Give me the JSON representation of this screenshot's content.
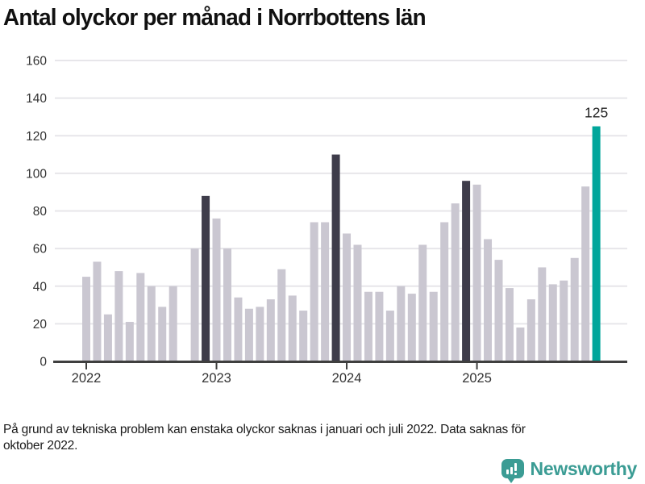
{
  "title": "Antal olyckor per månad i Norrbottens län",
  "footnote": {
    "line1": "På grund av tekniska problem kan enstaka olyckor saknas i januari och juli 2022. Data saknas för",
    "line2": "oktober 2022."
  },
  "branding": {
    "logo_text": "Newsworthy",
    "logo_color": "#3B9C94"
  },
  "colors": {
    "bar_default": "#CAC7D1",
    "bar_highlight_dark": "#3E3C4A",
    "bar_highlight_current": "#00A69B",
    "gridline": "#E7E6EA",
    "axis": "#3F3F3F",
    "tick_label": "#333333",
    "annotation_text": "#222222",
    "title_text": "#111111"
  },
  "chart_data": {
    "type": "bar",
    "title": "Antal olyckor per månad i Norrbottens län",
    "ylabel": "",
    "xlabel": "",
    "ylim": [
      0,
      160
    ],
    "yticks": [
      0,
      20,
      40,
      60,
      80,
      100,
      120,
      140,
      160
    ],
    "grid": true,
    "legend": false,
    "x": [
      "2022-01",
      "2022-02",
      "2022-03",
      "2022-04",
      "2022-05",
      "2022-06",
      "2022-07",
      "2022-08",
      "2022-09",
      "2022-10",
      "2022-11",
      "2022-12",
      "2023-01",
      "2023-02",
      "2023-03",
      "2023-04",
      "2023-05",
      "2023-06",
      "2023-07",
      "2023-08",
      "2023-09",
      "2023-10",
      "2023-11",
      "2023-12",
      "2024-01",
      "2024-02",
      "2024-03",
      "2024-04",
      "2024-05",
      "2024-06",
      "2024-07",
      "2024-08",
      "2024-09",
      "2024-10",
      "2024-11",
      "2024-12",
      "2025-01",
      "2025-02",
      "2025-03",
      "2025-04",
      "2025-05",
      "2025-06",
      "2025-07",
      "2025-08",
      "2025-09",
      "2025-10",
      "2025-11",
      "2025-12"
    ],
    "values": [
      45,
      53,
      25,
      48,
      21,
      47,
      40,
      29,
      40,
      null,
      60,
      88,
      76,
      60,
      34,
      28,
      29,
      33,
      49,
      35,
      27,
      74,
      74,
      110,
      68,
      62,
      37,
      37,
      27,
      40,
      36,
      62,
      37,
      74,
      84,
      96,
      94,
      65,
      54,
      39,
      18,
      33,
      50,
      41,
      43,
      55,
      93,
      125
    ],
    "missing_months": [
      "2022-10"
    ],
    "highlight_dark_months": [
      "2022-12",
      "2023-12",
      "2024-12"
    ],
    "highlight_current_month": "2025-12",
    "annotation": {
      "month": "2025-12",
      "label": "125"
    },
    "xticks": [
      {
        "label": "2022",
        "month": "2022-01"
      },
      {
        "label": "2023",
        "month": "2023-01"
      },
      {
        "label": "2024",
        "month": "2024-01"
      },
      {
        "label": "2025",
        "month": "2025-01"
      }
    ]
  }
}
